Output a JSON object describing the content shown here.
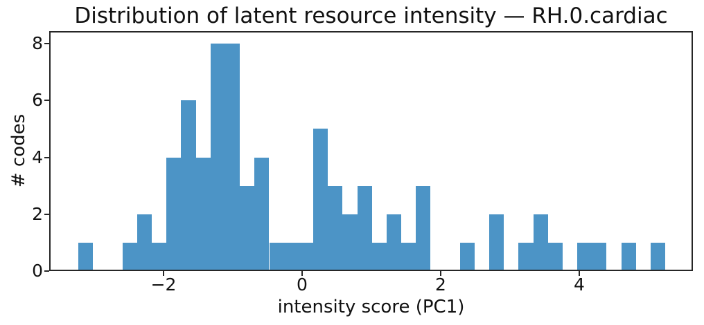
{
  "chart_data": {
    "type": "bar",
    "subtype": "histogram",
    "title": "Distribution of latent resource intensity — RH.0.cardiac",
    "xlabel": "intensity score (PC1)",
    "ylabel": "# codes",
    "bar_color": "#4C94C6",
    "axis_color": "#262626",
    "bin_start": -3.227,
    "bin_width": 0.2117,
    "counts": [
      1,
      0,
      0,
      1,
      2,
      1,
      4,
      6,
      4,
      8,
      8,
      3,
      4,
      1,
      1,
      1,
      5,
      3,
      2,
      3,
      1,
      2,
      1,
      3,
      0,
      0,
      1,
      0,
      2,
      0,
      1,
      2,
      1,
      0,
      1,
      1,
      0,
      1,
      0,
      1
    ],
    "total_codes": 76,
    "xlim": [
      -3.65,
      5.64
    ],
    "ylim": [
      0,
      8.44
    ],
    "xticks": [
      {
        "value": -2,
        "label": "−2"
      },
      {
        "value": 0,
        "label": "0"
      },
      {
        "value": 2,
        "label": "2"
      },
      {
        "value": 4,
        "label": "4"
      }
    ],
    "yticks": [
      {
        "value": 0,
        "label": "0"
      },
      {
        "value": 2,
        "label": "2"
      },
      {
        "value": 4,
        "label": "4"
      },
      {
        "value": 6,
        "label": "6"
      },
      {
        "value": 8,
        "label": "8"
      }
    ],
    "grid": false,
    "legend": null
  }
}
